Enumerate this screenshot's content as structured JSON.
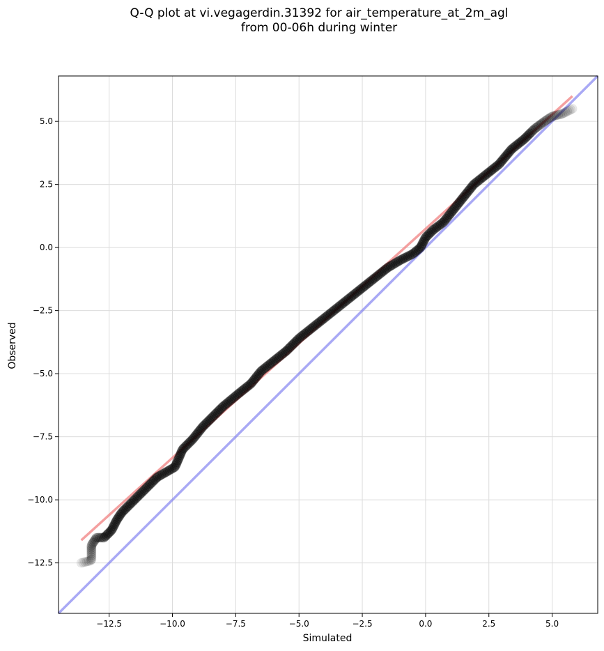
{
  "chart_data": {
    "type": "scatter",
    "title": "Q-Q plot at vi.vegagerdin.31392 for air_temperature_at_2m_agl\nfrom 00-06h during winter",
    "xlabel": "Simulated",
    "ylabel": "Observed",
    "xlim": [
      -14.5,
      6.8
    ],
    "ylim": [
      -14.5,
      6.8
    ],
    "xticks": [
      -12.5,
      -10.0,
      -7.5,
      -5.0,
      -2.5,
      0.0,
      2.5,
      5.0
    ],
    "yticks": [
      -12.5,
      -10.0,
      -7.5,
      -5.0,
      -2.5,
      0.0,
      2.5,
      5.0
    ],
    "grid": true,
    "colors": {
      "points": "#000000",
      "fit_line": "#f08080",
      "identity_line": "#7b7bf0"
    },
    "fit_line": {
      "x": [
        -13.6,
        5.8
      ],
      "y": [
        -11.6,
        6.0
      ]
    },
    "identity_line": {
      "x": [
        -14.5,
        6.8
      ],
      "y": [
        -14.5,
        6.8
      ]
    },
    "knots": [
      [
        -13.6,
        -12.5
      ],
      [
        -13.2,
        -12.4
      ],
      [
        -13.2,
        -11.8
      ],
      [
        -13.0,
        -11.5
      ],
      [
        -12.7,
        -11.5
      ],
      [
        -12.4,
        -11.2
      ],
      [
        -12.3,
        -11.0
      ],
      [
        -12.2,
        -10.8
      ],
      [
        -12.0,
        -10.5
      ],
      [
        -11.7,
        -10.2
      ],
      [
        -11.3,
        -9.8
      ],
      [
        -10.6,
        -9.1
      ],
      [
        -9.9,
        -8.7
      ],
      [
        -9.6,
        -8.0
      ],
      [
        -9.2,
        -7.6
      ],
      [
        -8.8,
        -7.1
      ],
      [
        -8.5,
        -6.8
      ],
      [
        -8.0,
        -6.3
      ],
      [
        -7.4,
        -5.8
      ],
      [
        -6.9,
        -5.4
      ],
      [
        -6.5,
        -4.9
      ],
      [
        -6.0,
        -4.5
      ],
      [
        -5.5,
        -4.1
      ],
      [
        -5.0,
        -3.6
      ],
      [
        -4.5,
        -3.2
      ],
      [
        -4.0,
        -2.8
      ],
      [
        -3.5,
        -2.4
      ],
      [
        -3.0,
        -2.0
      ],
      [
        -2.5,
        -1.6
      ],
      [
        -2.0,
        -1.2
      ],
      [
        -1.5,
        -0.8
      ],
      [
        -1.0,
        -0.5
      ],
      [
        -0.5,
        -0.25
      ],
      [
        -0.2,
        0.0
      ],
      [
        0.0,
        0.4
      ],
      [
        0.3,
        0.7
      ],
      [
        0.7,
        1.0
      ],
      [
        1.1,
        1.5
      ],
      [
        1.5,
        2.0
      ],
      [
        1.9,
        2.5
      ],
      [
        2.4,
        2.9
      ],
      [
        2.9,
        3.3
      ],
      [
        3.4,
        3.9
      ],
      [
        3.9,
        4.3
      ],
      [
        4.3,
        4.7
      ],
      [
        4.7,
        5.0
      ],
      [
        5.0,
        5.2
      ],
      [
        5.4,
        5.3
      ],
      [
        5.8,
        5.5
      ]
    ],
    "n_points": 360
  }
}
